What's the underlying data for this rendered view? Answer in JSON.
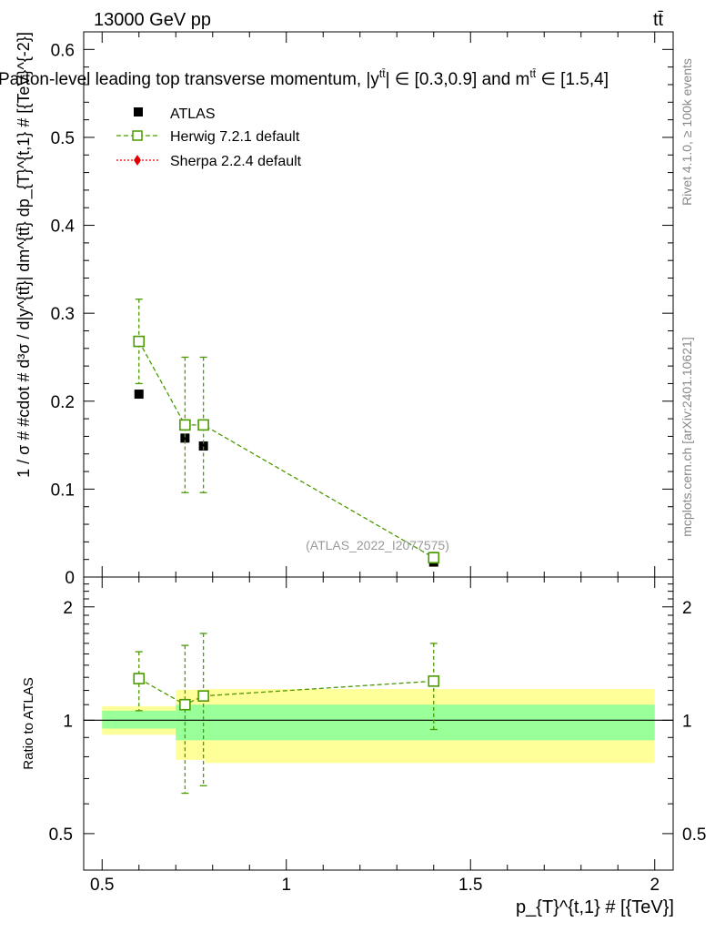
{
  "header": {
    "energy_label": "13000 GeV pp",
    "process_label": "tt̄",
    "title": "Parton-level leading top transverse momentum, |y",
    "title_sup": "tt̄",
    "title_mid": "| ∈ [0.3,0.9] and m",
    "title_sup2": "tt̄",
    "title_end": " ∈ [1.5,4]",
    "watermark_id": "(ATLAS_2022_I2077575)",
    "side_label_rivet": "Rivet 4.1.0, ≥ 100k events",
    "side_label_mcplots": "mcplots.cern.ch [arXiv:2401.10621]"
  },
  "legend": [
    {
      "name": "ATLAS",
      "color": "#000000",
      "marker": "filled-square"
    },
    {
      "name": "Herwig 7.2.1 default",
      "color": "#4a9a00",
      "marker": "open-square"
    },
    {
      "name": "Sherpa 2.2.4 default",
      "color": "#e00000",
      "marker": "diamond"
    }
  ],
  "axes": {
    "main_ylabel": "1 / σ # #cdot # d³σ / d|y^{tt̄}| dm^{tt̄} dp_{T}^{t,1} # [{TeV}^{-2}]",
    "ratio_ylabel": "Ratio to ATLAS",
    "xlabel": "p_{T}^{t,1} # [{TeV}]",
    "x_ticks": [
      "0.5",
      "1",
      "1.5",
      "2"
    ],
    "main_y_ticks": [
      "0",
      "0.1",
      "0.2",
      "0.3",
      "0.4",
      "0.5",
      "0.6"
    ],
    "ratio_y_ticks_left": [
      "0.5",
      "1",
      "2"
    ],
    "ratio_y_ticks_right": [
      "0.5",
      "1",
      "2"
    ]
  },
  "chart_data": [
    {
      "type": "scatter",
      "panel": "main",
      "xlim": [
        0.45,
        2.05
      ],
      "ylim": [
        0,
        0.62
      ],
      "series": [
        {
          "name": "ATLAS",
          "x": [
            0.6,
            0.725,
            0.775,
            1.4
          ],
          "y": [
            0.208,
            0.158,
            0.149,
            0.017
          ],
          "yerr": [
            0.004,
            0.004,
            0.004,
            0.002
          ]
        },
        {
          "name": "Herwig 7.2.1 default",
          "x": [
            0.6,
            0.725,
            0.775,
            1.4
          ],
          "y": [
            0.268,
            0.173,
            0.173,
            0.022
          ],
          "ylow": [
            0.22,
            0.096,
            0.096,
            0.016
          ],
          "yhigh": [
            0.316,
            0.25,
            0.25,
            0.028
          ]
        },
        {
          "name": "Sherpa 2.2.4 default",
          "x": [],
          "y": []
        }
      ]
    },
    {
      "type": "scatter",
      "panel": "ratio",
      "ylim": [
        0.4,
        2.4
      ],
      "yscale": "log",
      "reference": 1.0,
      "bands": {
        "edges": [
          0.5,
          0.7,
          0.78,
          2.0
        ],
        "inner_low": [
          0.95,
          0.885,
          0.885
        ],
        "inner_high": [
          1.06,
          1.1,
          1.1
        ],
        "outer_low": [
          0.915,
          0.785,
          0.77
        ],
        "outer_high": [
          1.09,
          1.205,
          1.21
        ]
      },
      "series": [
        {
          "name": "Herwig 7.2.1 default",
          "x": [
            0.6,
            0.725,
            0.775,
            1.4
          ],
          "y": [
            1.29,
            1.1,
            1.16,
            1.27
          ],
          "ylow": [
            1.06,
            0.64,
            0.67,
            0.945
          ],
          "yhigh": [
            1.52,
            1.58,
            1.7,
            1.6
          ]
        }
      ]
    }
  ]
}
